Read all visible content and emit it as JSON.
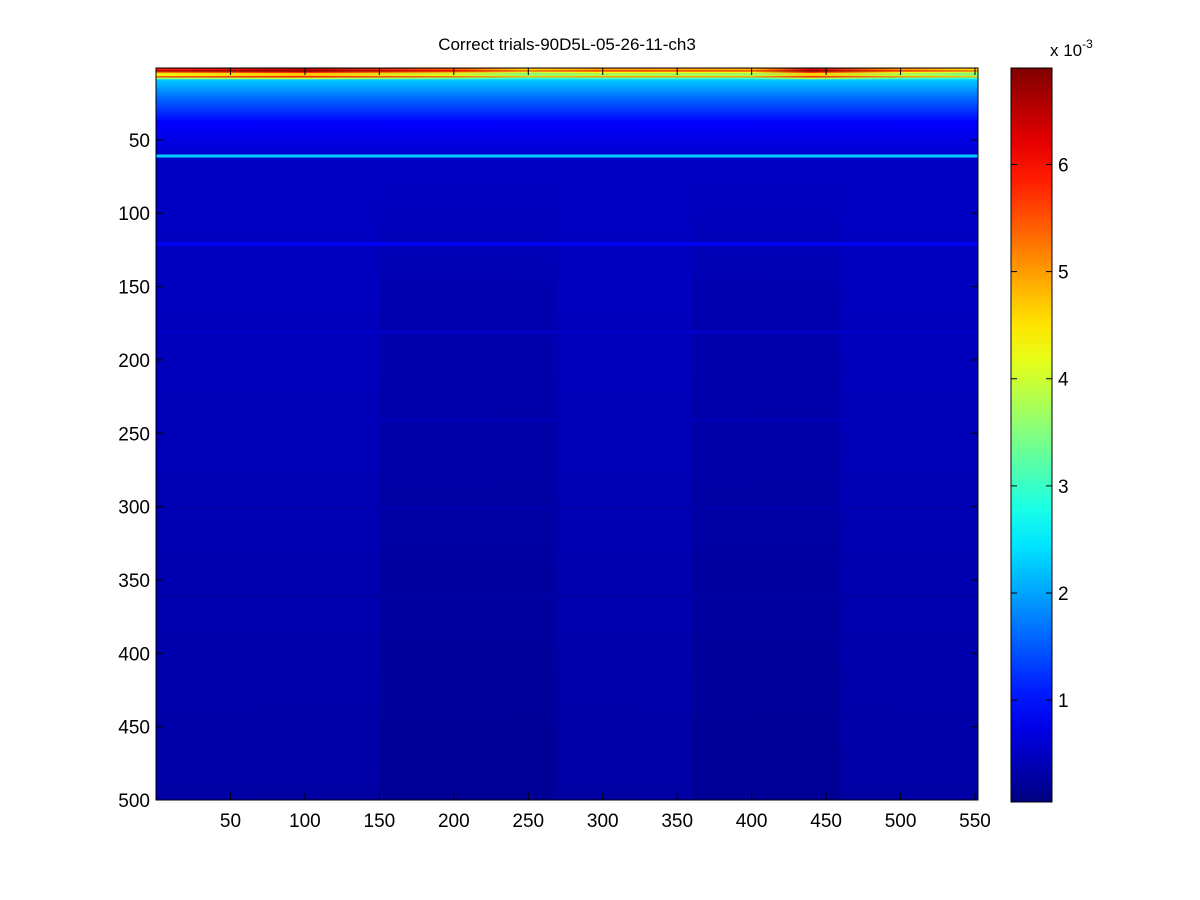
{
  "chart_data": {
    "type": "heatmap",
    "title": "Correct trials-90D5L-05-26-11-ch3",
    "xlabel": "",
    "ylabel": "",
    "xlim": [
      0,
      552
    ],
    "ylim": [
      500,
      1
    ],
    "x_ticks": [
      50,
      100,
      150,
      200,
      250,
      300,
      350,
      400,
      450,
      500,
      550
    ],
    "y_ticks": [
      50,
      100,
      150,
      200,
      250,
      300,
      350,
      400,
      450,
      500
    ],
    "colormap": "jet",
    "colorbar": {
      "scale_label_base": "x 10",
      "scale_label_exponent": "-3",
      "range": [
        0.05,
        6.9
      ],
      "ticks": [
        1,
        2,
        3,
        4,
        5,
        6
      ]
    },
    "grid": false,
    "description_of_values": {
      "top_band_rows_1_to_8": [
        6.3,
        5.8,
        6.6,
        5.2,
        4.2,
        4.4,
        5.5,
        3.6
      ],
      "top_band_columns": [
        0,
        100,
        200,
        250,
        300,
        400,
        440,
        500,
        552
      ],
      "rows_10_to_30_mean": 1.6,
      "rows_30_to_60_mean": 0.9,
      "highlight_rows": [
        {
          "row": 61,
          "value": 2.3
        },
        {
          "row": 121,
          "value": 0.9
        },
        {
          "row": 181,
          "value": 0.55
        },
        {
          "row": 241,
          "value": 0.45
        },
        {
          "row": 301,
          "value": 0.35
        },
        {
          "row": 361,
          "value": 0.3
        }
      ],
      "background_value_top": 0.55,
      "background_value_bottom": 0.3,
      "dark_columns": [
        {
          "from": 150,
          "to": 270,
          "value": 0.2
        },
        {
          "from": 360,
          "to": 460,
          "value": 0.22
        }
      ]
    }
  }
}
